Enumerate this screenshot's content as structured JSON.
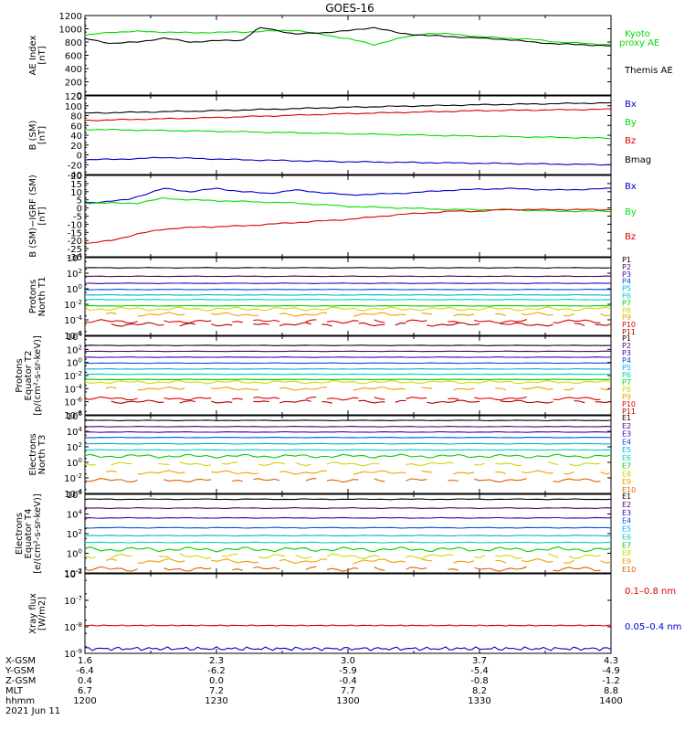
{
  "title": "GOES-16",
  "colors": {
    "black": "#000000",
    "green": "#00dd00",
    "blue": "#0000cc",
    "red": "#dd0000",
    "p_series": [
      "#000000",
      "#5a005a",
      "#3a00b0",
      "#0050e0",
      "#00b0e0",
      "#00d0c0",
      "#00d000",
      "#d8d800",
      "#f0a000",
      "#e00000",
      "#b00000"
    ],
    "e_series": [
      "#000000",
      "#5a005a",
      "#3a00b0",
      "#0050e0",
      "#00b0e0",
      "#00d0c0",
      "#00d000",
      "#c8d800",
      "#f0a000",
      "#e06000",
      "#e00000"
    ]
  },
  "chart_data": [
    {
      "id": "ae",
      "type": "line",
      "ylabel": "AE Index\n[nT]",
      "ylim": [
        0,
        1200
      ],
      "yticks": [
        "1200",
        "1000",
        "800",
        "600",
        "400",
        "200",
        "0"
      ],
      "legend": [
        {
          "text": "Kyoto",
          "color": "#00dd00"
        },
        {
          "text": "proxy AE",
          "color": "#00dd00"
        },
        {
          "text": "Themis AE",
          "color": "#000000"
        }
      ],
      "series": [
        {
          "color": "#00dd00",
          "x": [
            0,
            0.05,
            0.1,
            0.2,
            0.3,
            0.4,
            0.5,
            0.55,
            0.6,
            0.65,
            0.7,
            0.75,
            0.8,
            0.85,
            0.9,
            0.95,
            1
          ],
          "values": [
            900,
            950,
            960,
            940,
            950,
            980,
            850,
            760,
            860,
            930,
            920,
            880,
            860,
            840,
            800,
            780,
            760
          ]
        },
        {
          "color": "#000000",
          "x": [
            0,
            0.05,
            0.1,
            0.15,
            0.2,
            0.25,
            0.3,
            0.33,
            0.35,
            0.4,
            0.45,
            0.5,
            0.55,
            0.6,
            0.65,
            0.7,
            0.75,
            0.8,
            0.85,
            0.9,
            0.95,
            1
          ],
          "values": [
            850,
            780,
            800,
            860,
            800,
            820,
            830,
            1010,
            1000,
            920,
            940,
            970,
            1020,
            930,
            900,
            880,
            860,
            840,
            800,
            770,
            760,
            740
          ]
        }
      ]
    },
    {
      "id": "bsm",
      "type": "line",
      "ylabel": "B (SM)\n[nT]",
      "ylim": [
        -40,
        120
      ],
      "yticks": [
        "120",
        "100",
        "80",
        "60",
        "40",
        "20",
        "0",
        "-20",
        "-40"
      ],
      "legend": [
        {
          "text": "Bx",
          "color": "#0000cc"
        },
        {
          "text": "By",
          "color": "#00dd00"
        },
        {
          "text": "Bz",
          "color": "#dd0000"
        },
        {
          "text": "Bmag",
          "color": "#000000"
        }
      ],
      "series": [
        {
          "color": "#000000",
          "x": [
            0,
            0.25,
            0.5,
            0.75,
            1
          ],
          "values": [
            85,
            90,
            97,
            102,
            106
          ]
        },
        {
          "color": "#dd0000",
          "x": [
            0,
            0.25,
            0.5,
            0.75,
            1
          ],
          "values": [
            70,
            76,
            84,
            90,
            93
          ]
        },
        {
          "color": "#00dd00",
          "x": [
            0,
            0.25,
            0.5,
            0.75,
            1
          ],
          "values": [
            52,
            48,
            43,
            38,
            34
          ]
        },
        {
          "color": "#0000cc",
          "x": [
            0,
            0.1,
            0.15,
            0.2,
            0.3,
            0.5,
            0.75,
            1
          ],
          "values": [
            -10,
            -8,
            -5,
            -7,
            -10,
            -14,
            -17,
            -20
          ]
        }
      ]
    },
    {
      "id": "bigrf",
      "type": "line",
      "ylabel": "B (SM)−IGRF (SM)\n[nT]",
      "ylim": [
        -30,
        20
      ],
      "yticks": [
        "20",
        "15",
        "10",
        "5",
        "0",
        "-5",
        "-10",
        "-15",
        "-20",
        "-25",
        "-30"
      ],
      "legend": [
        {
          "text": "Bx",
          "color": "#0000cc"
        },
        {
          "text": "By",
          "color": "#00dd00"
        },
        {
          "text": "Bz",
          "color": "#dd0000"
        }
      ],
      "series": [
        {
          "color": "#0000cc",
          "x": [
            0,
            0.08,
            0.15,
            0.2,
            0.25,
            0.3,
            0.35,
            0.4,
            0.5,
            0.6,
            0.7,
            0.8,
            0.9,
            1
          ],
          "values": [
            3,
            5,
            12,
            10,
            12,
            10,
            9,
            11,
            8,
            9,
            11,
            12,
            11,
            12
          ]
        },
        {
          "color": "#00dd00",
          "x": [
            0,
            0.1,
            0.15,
            0.2,
            0.3,
            0.4,
            0.5,
            0.6,
            0.7,
            0.8,
            0.9,
            1
          ],
          "values": [
            3,
            3,
            6,
            5,
            4,
            3,
            1,
            0,
            -1,
            -1,
            -2,
            -2
          ]
        },
        {
          "color": "#dd0000",
          "x": [
            0,
            0.05,
            0.1,
            0.15,
            0.2,
            0.3,
            0.4,
            0.5,
            0.6,
            0.7,
            0.75,
            0.8,
            0.9,
            1
          ],
          "values": [
            -22,
            -20,
            -16,
            -13,
            -12,
            -11,
            -9,
            -7,
            -4,
            -2,
            -2,
            -1,
            -1,
            -1
          ]
        }
      ]
    },
    {
      "id": "p_north",
      "type": "line",
      "log": true,
      "ylabel": "Protons\nNorth T1",
      "ylim": [
        -6,
        4
      ],
      "yticks": [
        "10^4",
        "10^2",
        "10^0",
        "10^-2",
        "10^-4",
        "10^-6"
      ],
      "legend_set": "P",
      "labels": [
        "P1",
        "P2",
        "P3",
        "P4",
        "P5",
        "P6",
        "P7",
        "P8",
        "P9",
        "P10",
        "P11"
      ],
      "levels": [
        2.7,
        1.6,
        0.7,
        -0.1,
        -0.8,
        -1.4,
        -2.2,
        -2.6,
        -3.3,
        -4.2,
        -4.6
      ]
    },
    {
      "id": "p_equator",
      "type": "line",
      "log": true,
      "ylabel": "Protons\nEquator T2\n[p/(cm²-s-sr-keV)]",
      "ylim": [
        -8,
        4
      ],
      "yticks": [
        "10^4",
        "10^2",
        "10^0",
        "10^-2",
        "10^-4",
        "10^-6",
        "10^-8"
      ],
      "labels": [
        "P1",
        "P2",
        "P3",
        "P4",
        "P5",
        "P6",
        "P7",
        "P8",
        "P9",
        "P10",
        "P11"
      ],
      "levels": [
        2.6,
        1.7,
        0.8,
        -0.1,
        -1.0,
        -1.8,
        -2.6,
        -3.0,
        -4.0,
        -5.5,
        -6.0
      ]
    },
    {
      "id": "e_north",
      "type": "line",
      "log": true,
      "ylabel": "Electrons\nNorth T3",
      "ylim": [
        -4,
        6
      ],
      "yticks": [
        "10^6",
        "10^4",
        "10^2",
        "10^0",
        "10^-2",
        "10^-4"
      ],
      "labels": [
        "E1",
        "E2",
        "E3",
        "E4",
        "E5",
        "E6",
        "E7",
        "E8",
        "E9",
        "E10"
      ],
      "levels": [
        5.4,
        4.6,
        3.9,
        3.2,
        2.4,
        1.6,
        0.8,
        -0.2,
        -1.3,
        -2.3
      ]
    },
    {
      "id": "e_equator",
      "type": "line",
      "log": true,
      "ylabel": "Electrons\nEquator T4\n[e/(cm²-s-sr-keV)]",
      "ylim": [
        -2,
        6
      ],
      "yticks": [
        "10^6",
        "10^4",
        "10^2",
        "10^0",
        "10^-2"
      ],
      "labels": [
        "E1",
        "E2",
        "E3",
        "E4",
        "E5",
        "E6",
        "E7",
        "E8",
        "E9",
        "E10"
      ],
      "levels": [
        5.5,
        4.6,
        3.6,
        2.6,
        1.8,
        1.1,
        0.4,
        -0.3,
        -0.8,
        -1.6
      ]
    },
    {
      "id": "xray",
      "type": "line",
      "log": true,
      "ylabel": "Xray flux\n[W/m2]",
      "ylim": [
        -9,
        -3
      ],
      "yticks": [
        "10^-3",
        "10^-7",
        "10^-8",
        "10^-9"
      ],
      "legend": [
        {
          "text": "0.1–0.8 nm",
          "color": "#dd0000"
        },
        {
          "text": "0.05–0.4 nm",
          "color": "#0000cc"
        }
      ],
      "series": [
        {
          "color": "#dd0000",
          "level": -6.9
        },
        {
          "color": "#0000cc",
          "level": -8.65
        }
      ]
    }
  ],
  "x_axis": {
    "row_labels": [
      "X-GSM",
      "Y-GSM",
      "Z-GSM",
      "MLT",
      "hhmm",
      "2021 Jun 11"
    ],
    "columns": [
      {
        "x": 1.6,
        "vals": [
          "1.6",
          "-6.4",
          "0.4",
          "6.7",
          "1200"
        ]
      },
      {
        "x": 2.3,
        "vals": [
          "2.3",
          "-6.2",
          "0.0",
          "7.2",
          "1230"
        ]
      },
      {
        "x": 3.0,
        "vals": [
          "3.0",
          "-5.9",
          "-0.4",
          "7.7",
          "1300"
        ]
      },
      {
        "x": 3.7,
        "vals": [
          "3.7",
          "-5.4",
          "-0.8",
          "8.2",
          "1330"
        ]
      },
      {
        "x": 4.3,
        "vals": [
          "4.3",
          "-4.9",
          "-1.2",
          "8.8",
          "1400"
        ]
      }
    ]
  }
}
